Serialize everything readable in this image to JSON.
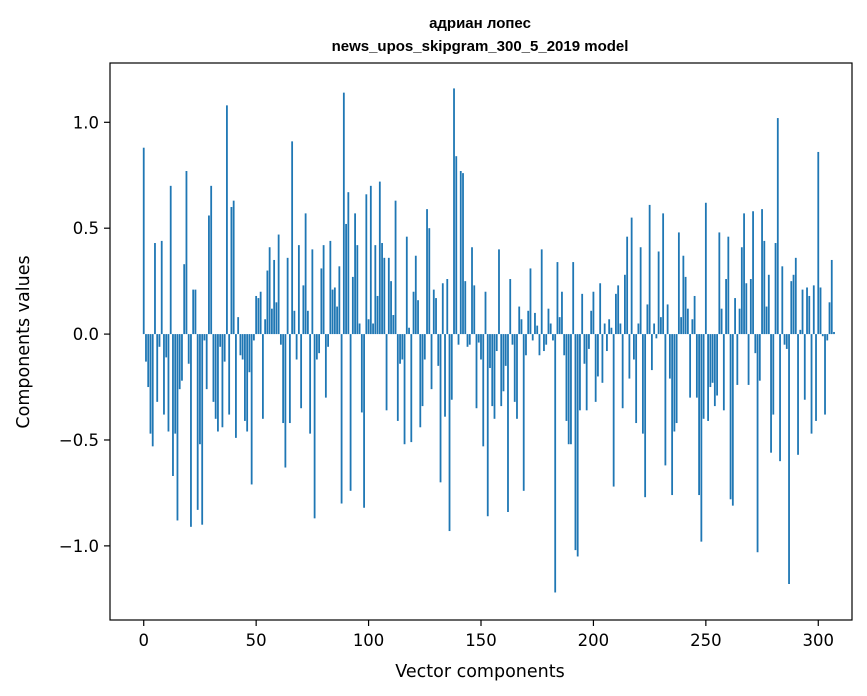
{
  "chart_data": {
    "type": "bar",
    "title_line1": "адриан лопес",
    "title_line2": "news_upos_skipgram_300_5_2019 model",
    "xlabel": "Vector components",
    "ylabel": "Components values",
    "xlim": [
      -15,
      315
    ],
    "ylim": [
      -1.35,
      1.28
    ],
    "xticks": [
      0,
      50,
      100,
      150,
      200,
      250,
      300
    ],
    "xtick_labels": [
      "0",
      "50",
      "100",
      "150",
      "200",
      "250",
      "300"
    ],
    "yticks": [
      -1.0,
      -0.5,
      0.0,
      0.5,
      1.0
    ],
    "ytick_labels": [
      "−1.0",
      "−0.5",
      "0.0",
      "0.5",
      "1.0"
    ],
    "bar_color": "#1f77b4",
    "grid": false,
    "values": [
      0.88,
      -0.13,
      -0.25,
      -0.47,
      -0.53,
      0.43,
      -0.32,
      -0.06,
      0.44,
      -0.38,
      -0.11,
      -0.46,
      0.7,
      -0.67,
      -0.47,
      -0.88,
      -0.26,
      -0.22,
      0.33,
      0.77,
      -0.14,
      -0.91,
      0.21,
      0.21,
      -0.83,
      -0.52,
      -0.9,
      -0.03,
      -0.26,
      0.56,
      0.7,
      -0.32,
      -0.4,
      -0.46,
      -0.06,
      -0.44,
      -0.13,
      1.08,
      -0.38,
      0.6,
      0.63,
      -0.49,
      0.08,
      -0.1,
      -0.12,
      -0.41,
      -0.46,
      -0.18,
      -0.71,
      -0.03,
      0.18,
      0.17,
      0.2,
      -0.4,
      0.07,
      0.3,
      0.41,
      0.12,
      0.35,
      0.15,
      0.47,
      -0.05,
      -0.42,
      -0.63,
      0.36,
      -0.42,
      0.91,
      0.11,
      -0.12,
      0.42,
      -0.35,
      0.23,
      0.57,
      0.11,
      -0.47,
      0.4,
      -0.87,
      -0.12,
      -0.09,
      0.31,
      0.42,
      -0.3,
      -0.06,
      0.44,
      0.21,
      0.22,
      0.13,
      0.32,
      -0.8,
      1.14,
      0.52,
      0.67,
      -0.74,
      0.27,
      0.57,
      0.42,
      0.05,
      -0.37,
      -0.82,
      0.66,
      0.07,
      0.7,
      0.05,
      0.42,
      0.18,
      0.72,
      0.43,
      0.36,
      -0.36,
      0.36,
      0.25,
      0.09,
      0.63,
      -0.41,
      -0.14,
      -0.12,
      -0.52,
      0.46,
      0.03,
      -0.51,
      0.2,
      0.37,
      0.16,
      -0.44,
      -0.34,
      -0.12,
      0.59,
      0.5,
      -0.26,
      0.21,
      0.17,
      -0.15,
      -0.7,
      0.24,
      -0.39,
      0.26,
      -0.93,
      -0.31,
      1.16,
      0.84,
      -0.05,
      0.77,
      0.76,
      0.25,
      -0.06,
      -0.05,
      0.41,
      0.23,
      -0.35,
      -0.04,
      -0.12,
      -0.53,
      0.2,
      -0.86,
      -0.16,
      -0.34,
      -0.4,
      -0.08,
      0.4,
      -0.34,
      -0.27,
      -0.15,
      -0.84,
      0.26,
      -0.05,
      -0.32,
      -0.4,
      0.13,
      0.07,
      -0.74,
      -0.1,
      0.11,
      0.31,
      -0.03,
      0.1,
      0.04,
      -0.1,
      0.4,
      -0.08,
      -0.05,
      0.12,
      0.05,
      -0.03,
      -1.22,
      0.34,
      0.08,
      0.2,
      -0.1,
      -0.41,
      -0.52,
      -0.52,
      0.34,
      -1.02,
      -1.05,
      -0.36,
      0.19,
      -0.14,
      -0.36,
      -0.07,
      0.11,
      0.2,
      -0.32,
      -0.2,
      0.24,
      -0.23,
      0.05,
      -0.08,
      0.07,
      0.03,
      -0.72,
      0.19,
      0.23,
      0.05,
      -0.35,
      0.28,
      0.46,
      -0.21,
      0.55,
      -0.12,
      -0.42,
      0.05,
      0.41,
      -0.47,
      -0.77,
      0.14,
      0.61,
      -0.17,
      0.05,
      -0.02,
      0.39,
      0.08,
      0.57,
      -0.62,
      0.14,
      -0.21,
      -0.76,
      -0.46,
      -0.42,
      0.48,
      0.08,
      0.37,
      0.27,
      0.12,
      -0.3,
      0.07,
      0.18,
      -0.3,
      -0.76,
      -0.98,
      -0.4,
      0.62,
      -0.41,
      -0.25,
      -0.23,
      -0.34,
      -0.29,
      0.48,
      0.12,
      -0.36,
      0.26,
      0.46,
      -0.78,
      -0.81,
      0.17,
      -0.24,
      0.12,
      0.41,
      0.57,
      0.24,
      -0.24,
      0.26,
      0.58,
      -0.09,
      -1.03,
      -0.22,
      0.59,
      0.44,
      0.13,
      0.28,
      -0.56,
      -0.38,
      0.43,
      1.02,
      -0.6,
      0.32,
      -0.05,
      -0.07,
      -1.18,
      0.25,
      0.28,
      0.36,
      -0.57,
      0.02,
      0.21,
      -0.31,
      0.22,
      0.18,
      -0.47,
      0.23,
      -0.41,
      0.86,
      0.22,
      -0.01,
      -0.38,
      -0.03,
      0.15,
      0.35,
      0.01
    ]
  }
}
